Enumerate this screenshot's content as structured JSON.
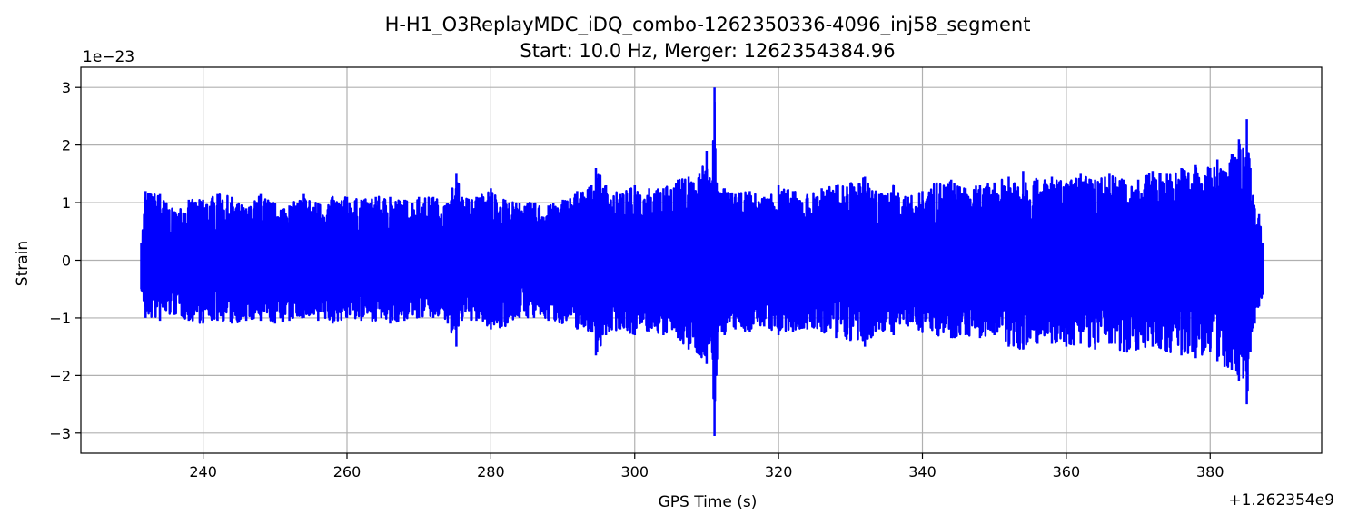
{
  "chart_data": {
    "type": "line",
    "title": "H-H1_O3ReplayMDC_iDQ_combo-1262350336-4096_inj58_segment",
    "subtitle": "Start: 10.0 Hz, Merger: 1262354384.96",
    "xlabel": "GPS Time (s)",
    "ylabel": "Strain",
    "x_offset_label": "+1.262354e9",
    "y_scale_label": "1e−23",
    "xlim": [
      223.0,
      395.5
    ],
    "ylim": [
      -3.35,
      3.35
    ],
    "x_ticks": [
      240,
      260,
      280,
      300,
      320,
      340,
      360,
      380
    ],
    "y_ticks": [
      -3,
      -2,
      -1,
      0,
      1,
      2,
      3
    ],
    "grid": true,
    "legend": "none",
    "line_color": "#0000ff",
    "series": [
      {
        "x": [
          231.4,
          232.0,
          234.0,
          236.0,
          238.0,
          240.0,
          242.0,
          244.0,
          246.0,
          248.0,
          250.0,
          252.0,
          254.0,
          256.0,
          258.0,
          260.0,
          262.0,
          264.0,
          266.0,
          268.0,
          270.0,
          272.0,
          274.0,
          275.2,
          276.0,
          278.0,
          280.0,
          282.0,
          284.0,
          286.0,
          288.0,
          290.0,
          292.0,
          294.0,
          294.6,
          296.0,
          298.0,
          300.0,
          302.0,
          304.0,
          306.0,
          307.5,
          309.0,
          310.0,
          310.7,
          311.1,
          311.6,
          312.5,
          314.0,
          316.0,
          318.0,
          320.0,
          322.0,
          324.0,
          326.0,
          328.0,
          330.0,
          332.0,
          334.0,
          336.0,
          338.0,
          340.0,
          342.0,
          344.0,
          346.0,
          348.0,
          350.0,
          352.0,
          354.0,
          356.0,
          358.0,
          360.0,
          362.0,
          364.0,
          366.0,
          368.0,
          370.0,
          372.0,
          374.0,
          376.0,
          378.0,
          380.0,
          381.0,
          382.0,
          383.0,
          384.0,
          384.6,
          385.1,
          385.6,
          386.2,
          386.8,
          387.3
        ],
        "y_max": [
          0.3,
          1.2,
          1.15,
          0.85,
          1.05,
          1.05,
          1.15,
          1.1,
          0.9,
          1.15,
          1.0,
          0.95,
          1.15,
          1.0,
          1.1,
          1.1,
          1.05,
          1.1,
          1.1,
          1.05,
          1.1,
          1.1,
          1.0,
          1.5,
          1.1,
          1.1,
          1.25,
          1.05,
          1.0,
          1.0,
          0.95,
          1.05,
          1.2,
          1.3,
          1.6,
          1.3,
          1.15,
          1.3,
          1.25,
          1.25,
          1.4,
          1.45,
          1.5,
          1.9,
          1.35,
          3.0,
          1.2,
          1.25,
          1.15,
          1.2,
          1.1,
          1.3,
          1.2,
          1.15,
          1.25,
          1.3,
          1.35,
          1.45,
          1.15,
          1.3,
          1.1,
          1.2,
          1.35,
          1.4,
          1.25,
          1.3,
          1.35,
          1.45,
          1.55,
          1.4,
          1.45,
          1.35,
          1.5,
          1.4,
          1.5,
          1.4,
          1.4,
          1.55,
          1.5,
          1.6,
          1.65,
          1.6,
          1.75,
          1.55,
          1.85,
          2.1,
          1.95,
          2.45,
          1.6,
          0.9,
          0.8,
          0.3
        ],
        "y_min": [
          -0.5,
          -1.0,
          -1.05,
          -0.95,
          -1.05,
          -1.1,
          -1.05,
          -1.1,
          -1.05,
          -1.05,
          -1.1,
          -1.05,
          -1.0,
          -1.05,
          -1.1,
          -1.0,
          -1.05,
          -1.05,
          -1.1,
          -1.05,
          -1.0,
          -1.0,
          -1.1,
          -1.5,
          -1.05,
          -1.05,
          -1.2,
          -1.15,
          -1.0,
          -1.0,
          -1.05,
          -1.1,
          -1.2,
          -1.25,
          -1.65,
          -1.3,
          -1.2,
          -1.3,
          -1.25,
          -1.3,
          -1.35,
          -1.55,
          -1.65,
          -1.8,
          -1.4,
          -3.05,
          -1.25,
          -1.3,
          -1.2,
          -1.25,
          -1.15,
          -1.3,
          -1.25,
          -1.2,
          -1.25,
          -1.35,
          -1.4,
          -1.5,
          -1.2,
          -1.3,
          -1.15,
          -1.25,
          -1.3,
          -1.35,
          -1.3,
          -1.35,
          -1.3,
          -1.5,
          -1.55,
          -1.45,
          -1.45,
          -1.5,
          -1.45,
          -1.55,
          -1.45,
          -1.6,
          -1.55,
          -1.5,
          -1.6,
          -1.65,
          -1.7,
          -1.6,
          -1.75,
          -1.85,
          -1.9,
          -2.1,
          -2.05,
          -2.5,
          -1.6,
          -1.1,
          -0.8,
          -0.6
        ]
      }
    ]
  }
}
